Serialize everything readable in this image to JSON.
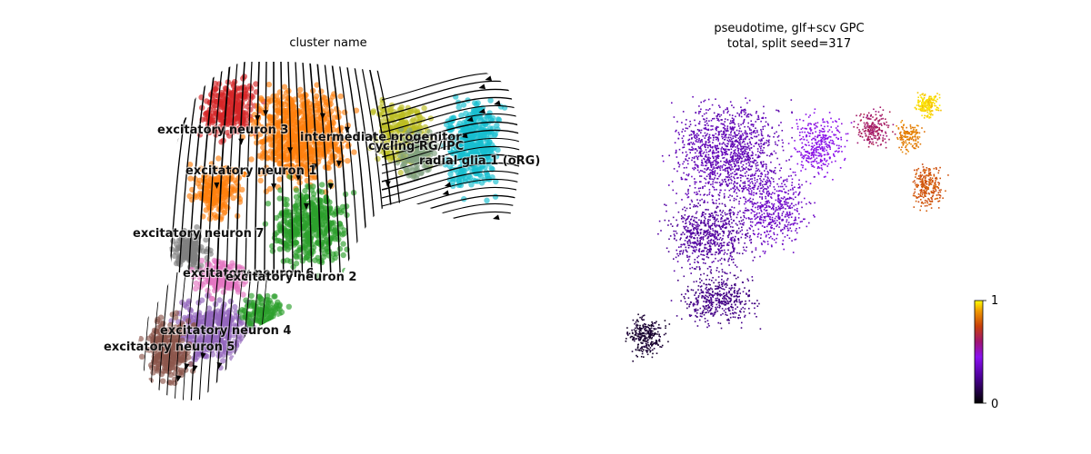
{
  "chart_data": [
    {
      "type": "scatter",
      "title": "cluster name",
      "xlabel": "",
      "ylabel": "",
      "grid": false,
      "overlay": "velocity streamlines",
      "colors": {
        "excitatory neuron 3": "#d62728",
        "excitatory neuron 1": "#ff7f0e",
        "excitatory neuron 2": "#2ca02c",
        "excitatory neuron 7": "#7f7f7f",
        "excitatory neuron 6": "#e377c2",
        "excitatory neuron 4": "#9467bd",
        "excitatory neuron 5": "#8c564b",
        "intermediate progenitor": "#bcbd22",
        "cycling RG/IPC": "#7f9f7f",
        "radial glia 1 (oRG)": "#17becf"
      },
      "labels": [
        "excitatory neuron 3",
        "intermediate progenitor",
        "cycling RG/IPC",
        "radial glia 1 (oRG)",
        "excitatory neuron 1",
        "excitatory neuron 7",
        "excitatory neuron 6",
        "excitatory neuron 2",
        "excitatory neuron 4",
        "excitatory neuron 5"
      ]
    },
    {
      "type": "scatter",
      "title": "pseudotime, glf+scv GPC",
      "subtitle": "total, split seed=317",
      "xlabel": "",
      "ylabel": "",
      "grid": false,
      "colorbar": {
        "min": 0,
        "max": 1,
        "ticks": [
          "0",
          "1"
        ],
        "colormap": "gnuplot"
      }
    }
  ]
}
